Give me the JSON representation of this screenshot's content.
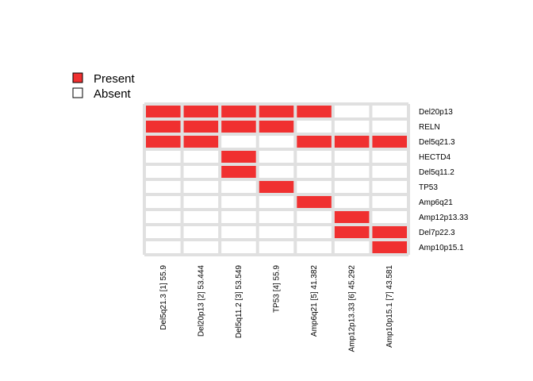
{
  "chart_data": {
    "type": "heatmap",
    "legend": [
      {
        "label": "Present",
        "color": "#f03030"
      },
      {
        "label": "Absent",
        "color": "#ffffff"
      }
    ],
    "rows": [
      "Del20p13",
      "RELN",
      "Del5q21.3",
      "HECTD4",
      "Del5q11.2",
      "TP53",
      "Amp6q21",
      "Amp12p13.33",
      "Del7p22.3",
      "Amp10p15.1"
    ],
    "columns": [
      "Del5q21.3 [1] 55.9",
      "Del20p13 [2] 53.444",
      "Del5q11.2 [3] 53.549",
      "TP53 [4] 55.9",
      "Amp6q21 [5] 41.382",
      "Amp12p13.33 [6] 45.292",
      "Amp10p15.1 [7] 43.581"
    ],
    "matrix": [
      [
        1,
        1,
        1,
        1,
        1,
        0,
        0
      ],
      [
        1,
        1,
        1,
        1,
        0,
        0,
        0
      ],
      [
        1,
        1,
        0,
        0,
        1,
        1,
        1
      ],
      [
        0,
        0,
        1,
        0,
        0,
        0,
        0
      ],
      [
        0,
        0,
        1,
        0,
        0,
        0,
        0
      ],
      [
        0,
        0,
        0,
        1,
        0,
        0,
        0
      ],
      [
        0,
        0,
        0,
        0,
        1,
        0,
        0
      ],
      [
        0,
        0,
        0,
        0,
        0,
        1,
        0
      ],
      [
        0,
        0,
        0,
        0,
        0,
        1,
        1
      ],
      [
        0,
        0,
        0,
        0,
        0,
        0,
        1
      ]
    ],
    "present_color": "#f03030",
    "grid_color": "#e0e0e0"
  }
}
